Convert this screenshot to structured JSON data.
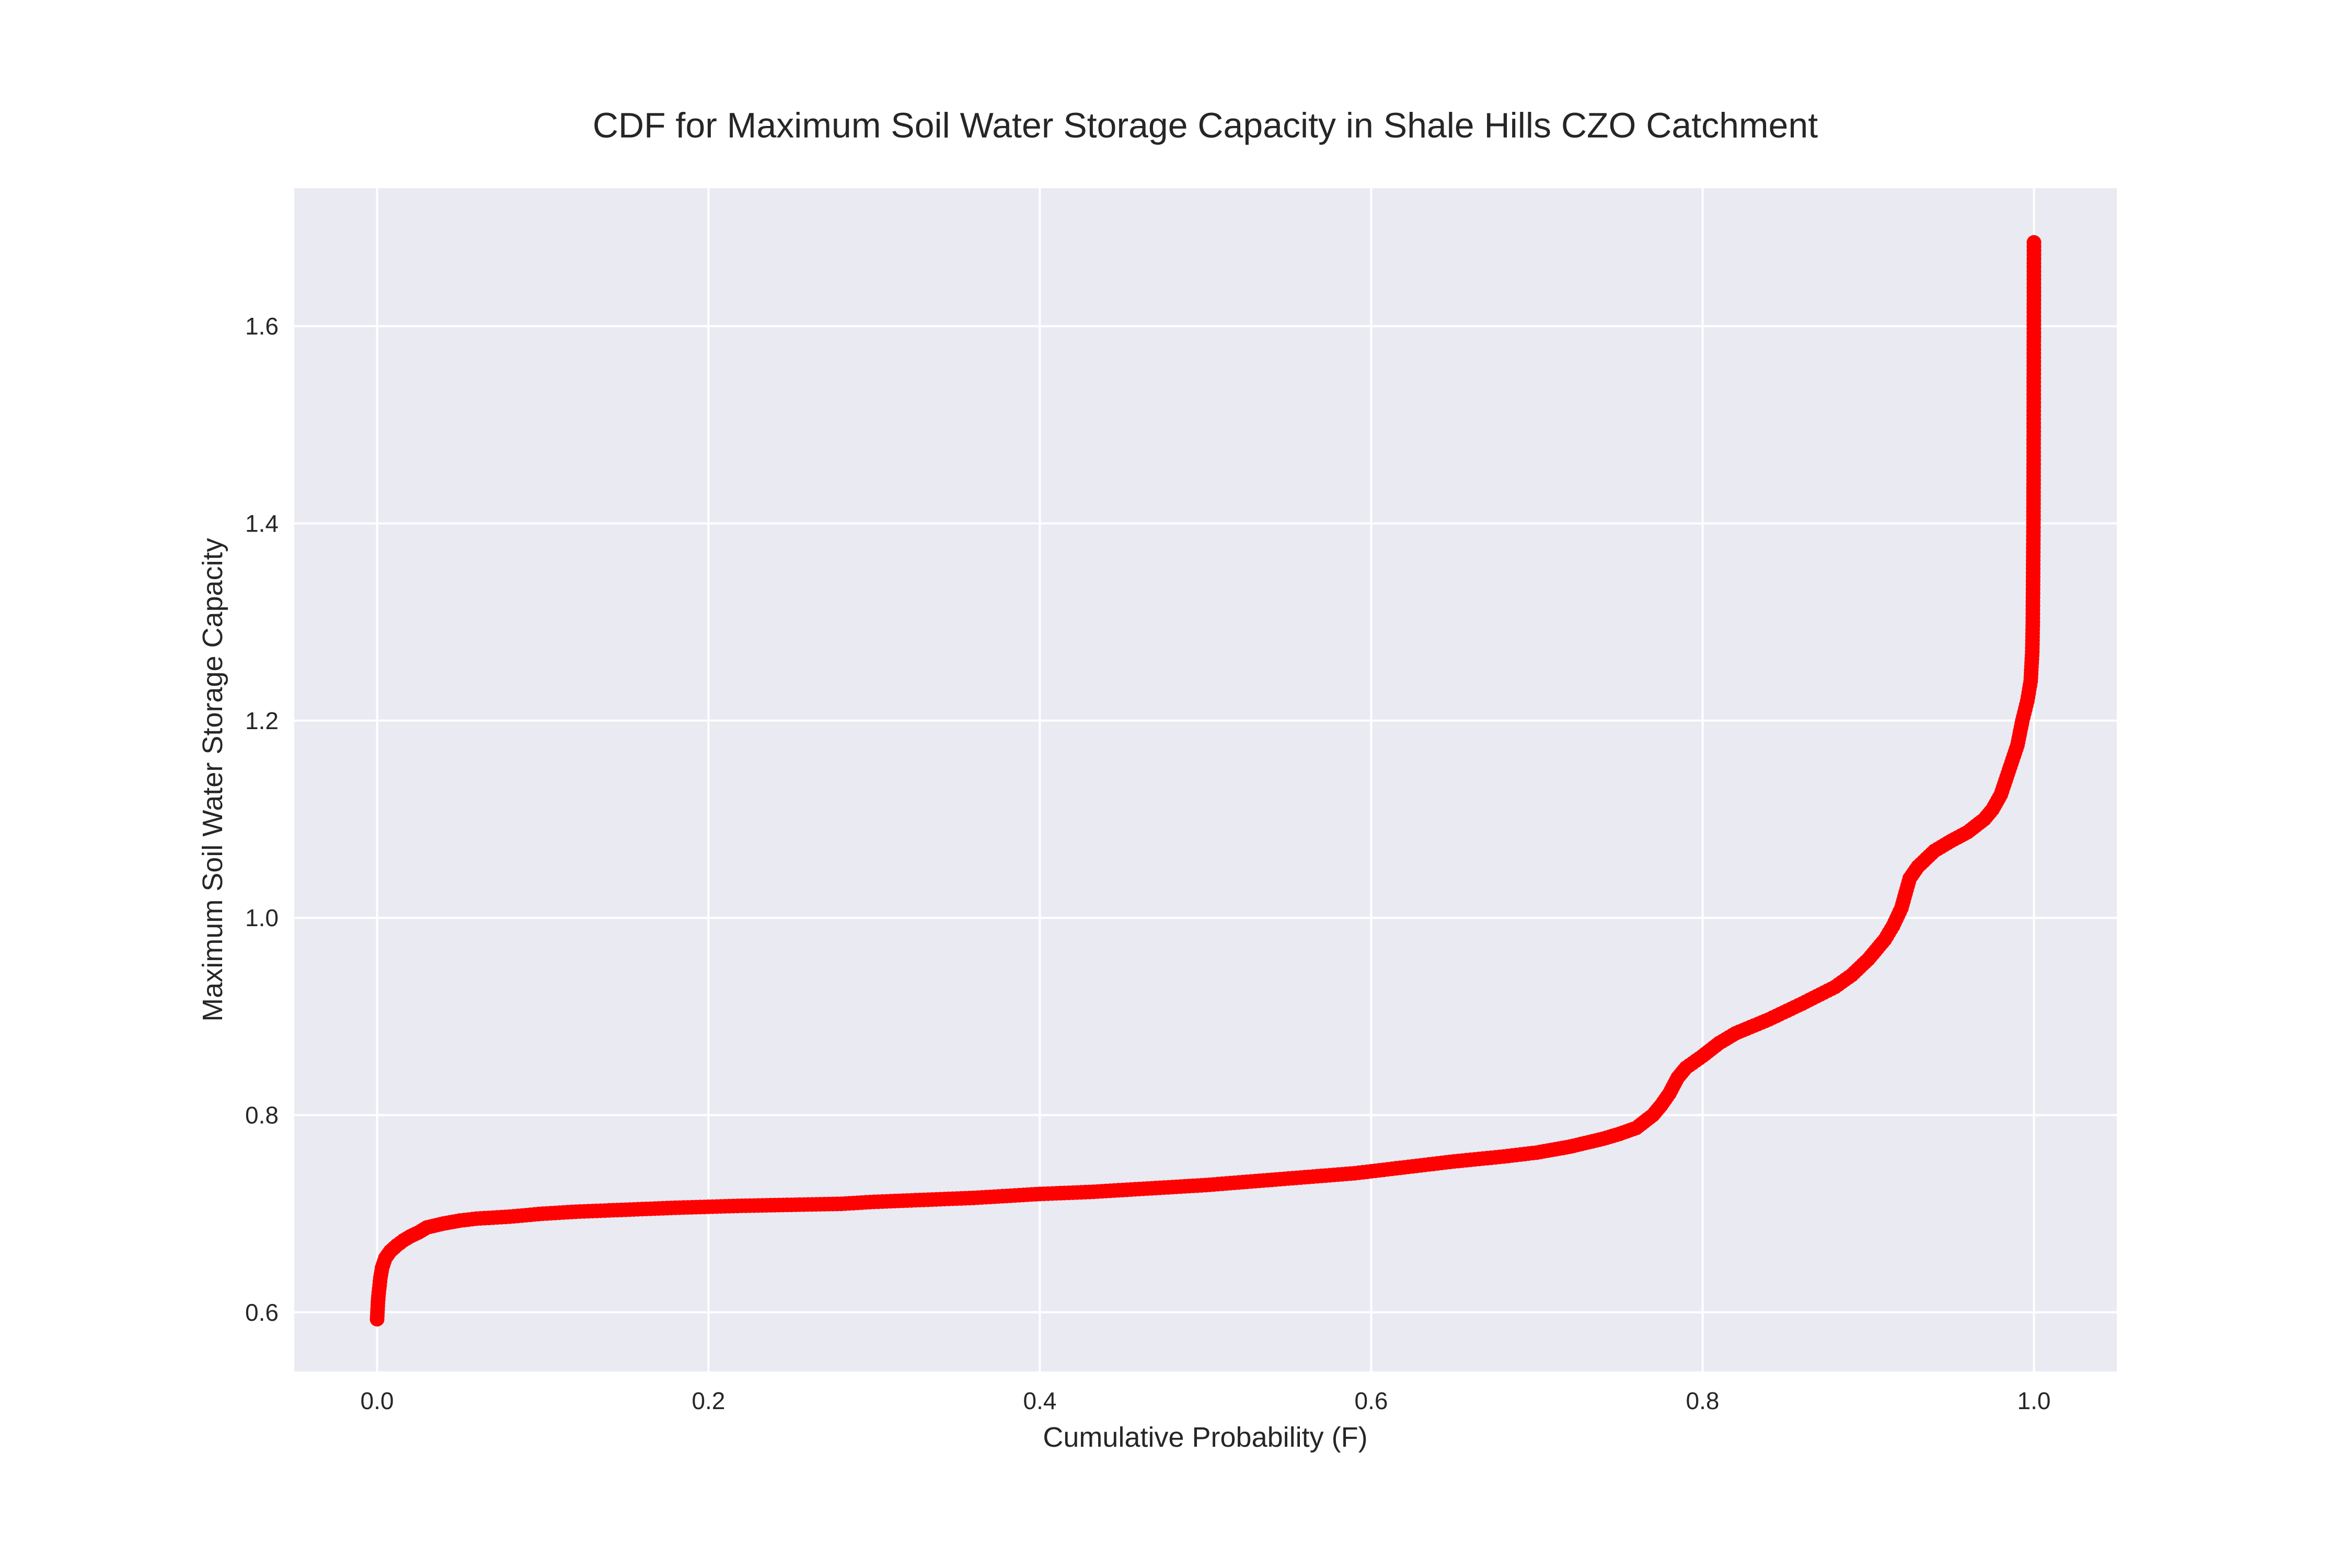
{
  "chart_data": {
    "type": "line",
    "title": "CDF for Maximum Soil Water Storage Capacity in Shale Hills CZO Catchment",
    "xlabel": "Cumulative Probability (F)",
    "ylabel": "Maximum Soil Water Storage Capacity",
    "xlim": [
      -0.05,
      1.05
    ],
    "ylim": [
      0.54,
      1.74
    ],
    "xticks": [
      0.0,
      0.2,
      0.4,
      0.6,
      0.8,
      1.0
    ],
    "xtick_labels": [
      "0.0",
      "0.2",
      "0.4",
      "0.6",
      "0.8",
      "1.0"
    ],
    "yticks": [
      0.6,
      0.8,
      1.0,
      1.2,
      1.4,
      1.6
    ],
    "ytick_labels": [
      "0.6",
      "0.8",
      "1.0",
      "1.2",
      "1.4",
      "1.6"
    ],
    "grid": true,
    "background": "#eaeaf2",
    "line_color": "#0000ff",
    "marker_color": "#ff0000",
    "series": [
      {
        "x": [
          0.0,
          0.0005,
          0.001,
          0.002,
          0.003,
          0.005,
          0.008,
          0.012,
          0.016,
          0.02,
          0.025,
          0.03,
          0.04,
          0.05,
          0.06,
          0.08,
          0.1,
          0.12,
          0.15,
          0.18,
          0.2,
          0.22,
          0.25,
          0.28,
          0.3,
          0.33,
          0.36,
          0.4,
          0.43,
          0.46,
          0.5,
          0.53,
          0.56,
          0.59,
          0.62,
          0.65,
          0.68,
          0.7,
          0.72,
          0.74,
          0.75,
          0.76,
          0.77,
          0.775,
          0.78,
          0.785,
          0.79,
          0.8,
          0.81,
          0.82,
          0.84,
          0.86,
          0.88,
          0.89,
          0.9,
          0.91,
          0.915,
          0.92,
          0.925,
          0.93,
          0.94,
          0.95,
          0.96,
          0.97,
          0.975,
          0.98,
          0.985,
          0.99,
          0.993,
          0.996,
          0.998,
          0.999,
          0.9993,
          0.9995,
          0.9997,
          0.9998,
          0.9999,
          1.0
        ],
        "y": [
          0.593,
          0.61,
          0.62,
          0.635,
          0.645,
          0.655,
          0.662,
          0.668,
          0.673,
          0.677,
          0.681,
          0.686,
          0.69,
          0.693,
          0.695,
          0.697,
          0.7,
          0.702,
          0.704,
          0.706,
          0.707,
          0.708,
          0.709,
          0.71,
          0.712,
          0.714,
          0.716,
          0.72,
          0.722,
          0.725,
          0.729,
          0.733,
          0.737,
          0.741,
          0.747,
          0.753,
          0.758,
          0.762,
          0.768,
          0.776,
          0.781,
          0.787,
          0.8,
          0.81,
          0.822,
          0.838,
          0.848,
          0.86,
          0.873,
          0.883,
          0.897,
          0.913,
          0.93,
          0.942,
          0.958,
          0.978,
          0.992,
          1.01,
          1.04,
          1.052,
          1.068,
          1.078,
          1.087,
          1.1,
          1.11,
          1.125,
          1.15,
          1.175,
          1.2,
          1.22,
          1.24,
          1.27,
          1.3,
          1.35,
          1.4,
          1.46,
          1.56,
          1.685
        ]
      }
    ]
  }
}
